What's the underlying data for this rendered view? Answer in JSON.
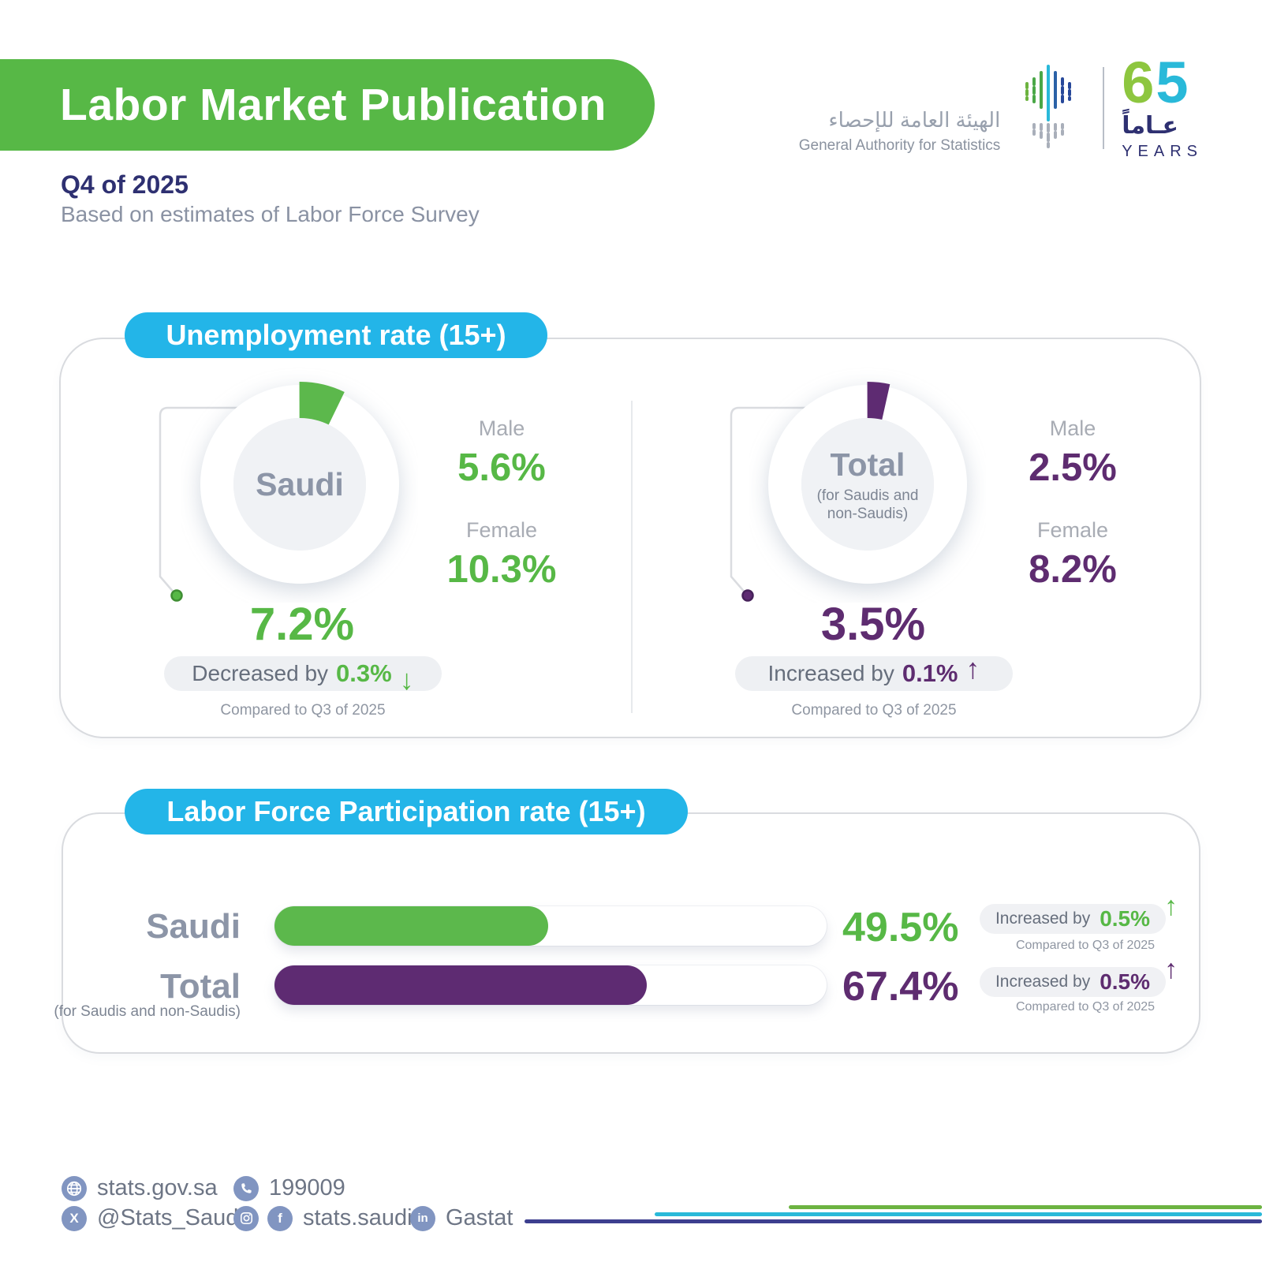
{
  "header": {
    "title": "Labor Market Publication",
    "quarter": "Q4 of 2025",
    "subtitle": "Based on estimates of Labor Force Survey"
  },
  "logo": {
    "arabic_name": "الهيئة العامة للإحصاء",
    "english_name": "General Authority for Statistics",
    "anniversary_digit1": "6",
    "anniversary_digit2": "5",
    "anniversary_arabic": "عـاماً",
    "anniversary_label": "YEARS"
  },
  "unemployment": {
    "section_title": "Unemployment rate (15+)",
    "saudi": {
      "label": "Saudi",
      "male_label": "Male",
      "male_value": "5.6%",
      "female_label": "Female",
      "female_value": "10.3%",
      "total_value": "7.2%",
      "percent": 7.2,
      "change_text": "Decreased by",
      "change_value": "0.3%",
      "change_arrow": "↓",
      "compare_note": "Compared to Q3 of 2025"
    },
    "total": {
      "label": "Total",
      "sublabel": "(for Saudis and non-Saudis)",
      "male_label": "Male",
      "male_value": "2.5%",
      "female_label": "Female",
      "female_value": "8.2%",
      "total_value": "3.5%",
      "percent": 3.5,
      "change_text": "Increased by",
      "change_value": "0.1%",
      "change_arrow": "↑",
      "compare_note": "Compared to Q3 of 2025"
    }
  },
  "participation": {
    "section_title": "Labor Force Participation rate (15+)",
    "rows": [
      {
        "label": "Saudi",
        "sublabel": "",
        "value": "49.5%",
        "percent": 49.5,
        "change_text": "Increased by",
        "change_value": "0.5%",
        "change_arrow": "↑",
        "compare_note": "Compared to Q3 of 2025"
      },
      {
        "label": "Total",
        "sublabel": "(for Saudis and non-Saudis)",
        "value": "67.4%",
        "percent": 67.4,
        "change_text": "Increased by",
        "change_value": "0.5%",
        "change_arrow": "↑",
        "compare_note": "Compared to Q3 of 2025"
      }
    ]
  },
  "footer": {
    "website": "stats.gov.sa",
    "phone": "199009",
    "x_handle": "@Stats_Saudi",
    "x_glyph": "X",
    "facebook_glyph": "f",
    "social_handle": "stats.saudi",
    "linkedin_glyph": "in",
    "linkedin_handle": "Gastat"
  },
  "colors": {
    "green": "#57b846",
    "blue": "#23b5e8",
    "navy": "#2e3071",
    "purple": "#5e2b72",
    "card_border": "#d9dbdf",
    "footer_icon": "#8195c1"
  },
  "chart_data": [
    {
      "type": "donut-gauge",
      "title": "Unemployment rate (15+) — Saudi",
      "value": 7.2,
      "unit": "%",
      "breakdown": {
        "Male": 5.6,
        "Female": 10.3
      },
      "change": {
        "direction": "decrease",
        "amount": 0.3,
        "vs": "Q3 of 2025"
      },
      "color": "#57b846"
    },
    {
      "type": "donut-gauge",
      "title": "Unemployment rate (15+) — Total (for Saudis and non-Saudis)",
      "value": 3.5,
      "unit": "%",
      "breakdown": {
        "Male": 2.5,
        "Female": 8.2
      },
      "change": {
        "direction": "increase",
        "amount": 0.1,
        "vs": "Q3 of 2025"
      },
      "color": "#5e2b72"
    },
    {
      "type": "bar",
      "title": "Labor Force Participation rate (15+)",
      "categories": [
        "Saudi",
        "Total (for Saudis and non-Saudis)"
      ],
      "values": [
        49.5,
        67.4
      ],
      "unit": "%",
      "xlim": [
        0,
        100
      ],
      "changes": [
        {
          "direction": "increase",
          "amount": 0.5,
          "vs": "Q3 of 2025"
        },
        {
          "direction": "increase",
          "amount": 0.5,
          "vs": "Q3 of 2025"
        }
      ],
      "colors": [
        "#5cb84c",
        "#5e2b72"
      ]
    }
  ]
}
